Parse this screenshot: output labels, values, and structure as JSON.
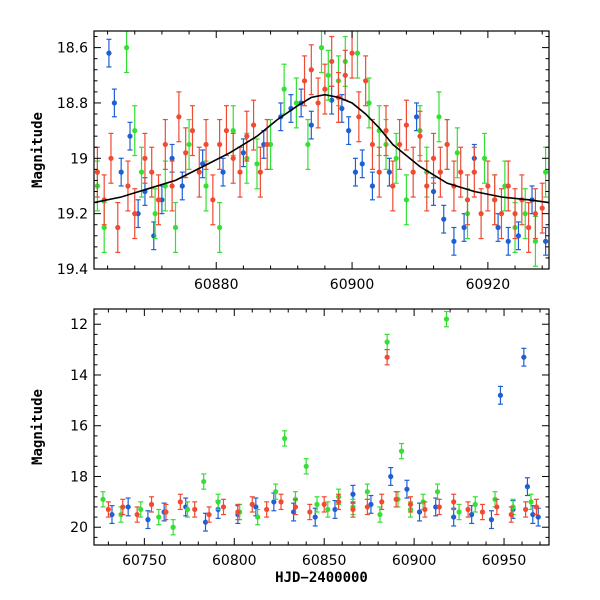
{
  "chart_data": [
    {
      "type": "scatter",
      "title": "",
      "xlabel": "",
      "ylabel": "Magnitude",
      "xlim": [
        60862,
        60929
      ],
      "ylim": [
        19.4,
        18.54
      ],
      "inverted_y": true,
      "x_ticks": [
        60880,
        60900,
        60920
      ],
      "y_ticks": [
        18.6,
        18.8,
        19,
        19.2,
        19.4
      ],
      "x_tick_labels": [
        "60880",
        "60900",
        "60920"
      ],
      "y_tick_labels": [
        "18.6",
        "18.8",
        "19",
        "19.2",
        "19.4"
      ],
      "error_bars": true,
      "series": [
        {
          "name": "blue",
          "color": "#1f5fd6",
          "error": 0.05,
          "x": [
            60864.2,
            60865.0,
            60866.0,
            60867.3,
            60868.5,
            60869.5,
            60870.8,
            60872.0,
            60873.5,
            60875.0,
            60878.0,
            60881.0,
            60884.0,
            60887.0,
            60889.5,
            60891.0,
            60892.5,
            60894.0,
            60897.0,
            60898.5,
            60899.5,
            60900.5,
            60901.5,
            60903.0,
            60905.5,
            60909.5,
            60912.0,
            60913.5,
            60915.0,
            60916.5,
            60918.0,
            60921.5,
            60923.0,
            60924.5,
            60926.5,
            60928.5
          ],
          "y": [
            18.62,
            18.8,
            19.05,
            18.92,
            19.2,
            19.12,
            19.28,
            19.15,
            19.0,
            19.1,
            19.02,
            19.05,
            18.98,
            18.95,
            18.85,
            18.82,
            18.8,
            18.88,
            18.79,
            18.82,
            18.9,
            19.05,
            19.02,
            19.1,
            19.05,
            18.85,
            19.12,
            19.22,
            19.3,
            19.25,
            19.0,
            19.25,
            19.3,
            19.28,
            19.15,
            19.3
          ]
        },
        {
          "name": "green",
          "color": "#33e033",
          "error": 0.09,
          "x": [
            60862.5,
            60863.5,
            60866.8,
            60868.0,
            60869.0,
            60871.0,
            60872.5,
            60874.0,
            60876.0,
            60878.5,
            60880.5,
            60882.5,
            60884.5,
            60886.0,
            60888.0,
            60890.0,
            60891.8,
            60893.5,
            60895.5,
            60896.5,
            60898.0,
            60899.0,
            60900.8,
            60902.5,
            60904.0,
            60905.0,
            60906.5,
            60908.0,
            60910.0,
            60911.0,
            60912.8,
            60914.0,
            60915.5,
            60917.0,
            60919.5,
            60921.0,
            60922.5,
            60924.0,
            60925.5,
            60927.0,
            60928.5
          ],
          "y": [
            19.1,
            19.25,
            18.6,
            18.9,
            19.05,
            19.2,
            19.1,
            19.25,
            18.95,
            19.1,
            19.25,
            18.9,
            19.0,
            19.02,
            18.95,
            18.75,
            18.8,
            18.95,
            18.6,
            18.7,
            18.72,
            18.65,
            18.62,
            18.8,
            18.9,
            18.95,
            19.0,
            19.15,
            18.9,
            19.05,
            18.85,
            18.95,
            18.98,
            19.2,
            19.0,
            19.15,
            19.1,
            19.25,
            19.2,
            19.3,
            19.05
          ]
        },
        {
          "name": "red",
          "color": "#f04a32",
          "error": 0.09,
          "x": [
            60862.5,
            60863.5,
            60864.5,
            60865.5,
            60867.0,
            60868.0,
            60869.5,
            60870.5,
            60871.5,
            60872.5,
            60873.5,
            60874.5,
            60875.5,
            60876.5,
            60877.5,
            60878.5,
            60879.5,
            60880.5,
            60881.5,
            60882.5,
            60883.5,
            60884.5,
            60885.5,
            60886.5,
            60887.5,
            60893.0,
            60894.0,
            60895.0,
            60896.0,
            60897.0,
            60898.0,
            60899.0,
            60900.0,
            60901.0,
            60902.0,
            60903.0,
            60904.0,
            60905.0,
            60906.0,
            60907.0,
            60908.0,
            60909.0,
            60910.0,
            60911.0,
            60912.0,
            60913.0,
            60914.0,
            60915.0,
            60916.0,
            60917.0,
            60918.0,
            60919.0,
            60920.0,
            60921.0,
            60922.0,
            60923.0,
            60924.0,
            60925.0,
            60926.0,
            60927.0,
            60928.0
          ],
          "y": [
            19.05,
            19.15,
            19.0,
            19.25,
            19.1,
            19.2,
            19.0,
            19.05,
            19.15,
            18.95,
            19.1,
            18.85,
            18.98,
            18.9,
            19.05,
            18.95,
            19.15,
            18.95,
            18.9,
            19.0,
            19.05,
            18.92,
            18.88,
            19.05,
            18.95,
            18.72,
            18.68,
            18.8,
            18.75,
            18.65,
            18.78,
            18.7,
            18.62,
            18.85,
            18.72,
            18.95,
            19.05,
            18.9,
            19.1,
            18.95,
            18.88,
            19.05,
            18.92,
            19.1,
            19.0,
            19.05,
            18.95,
            19.1,
            19.05,
            19.15,
            19.05,
            19.2,
            19.1,
            19.15,
            19.2,
            19.1,
            19.2,
            19.15,
            19.25,
            19.2,
            19.18
          ]
        },
        {
          "name": "model",
          "type": "line",
          "color": "#000000",
          "x": [
            60862,
            60866,
            60870,
            60874,
            60878,
            60882,
            60886,
            60889,
            60892,
            60894,
            60896,
            60898,
            60900,
            60902,
            60904,
            60906,
            60910,
            60914,
            60918,
            60922,
            60926,
            60929
          ],
          "y": [
            19.16,
            19.14,
            19.11,
            19.08,
            19.03,
            18.98,
            18.92,
            18.86,
            18.81,
            18.78,
            18.77,
            18.78,
            18.8,
            18.84,
            18.89,
            18.95,
            19.03,
            19.09,
            19.12,
            19.14,
            19.15,
            19.16
          ]
        }
      ]
    },
    {
      "type": "scatter",
      "title": "",
      "xlabel": "HJD−2400000",
      "ylabel": "Magnitude",
      "xlim": [
        60722,
        60975
      ],
      "ylim": [
        20.7,
        11.4
      ],
      "inverted_y": true,
      "x_ticks": [
        60750,
        60800,
        60850,
        60900,
        60950
      ],
      "y_ticks": [
        12,
        14,
        16,
        18,
        20
      ],
      "x_tick_labels": [
        "60750",
        "60800",
        "60850",
        "60900",
        "60950"
      ],
      "y_tick_labels": [
        "12",
        "14",
        "16",
        "18",
        "20"
      ],
      "error_bars": true,
      "series": [
        {
          "name": "blue",
          "color": "#1f5fd6",
          "error": 0.35,
          "x": [
            60732,
            60741,
            60752,
            60761,
            60773,
            60784,
            60791,
            60802,
            60812,
            60822,
            60833,
            60845,
            60856,
            60866,
            60876,
            60887,
            60896,
            60903,
            60912,
            60922,
            60932,
            60943,
            60948,
            60955,
            60961,
            60963,
            60966,
            60969
          ],
          "y": [
            19.5,
            19.2,
            19.7,
            19.4,
            19.2,
            19.8,
            19.3,
            19.5,
            19.2,
            19.0,
            19.4,
            19.6,
            19.3,
            18.7,
            19.1,
            18.0,
            18.5,
            19.4,
            19.2,
            19.6,
            19.5,
            19.7,
            14.8,
            19.3,
            13.3,
            18.4,
            19.5,
            19.6
          ]
        },
        {
          "name": "green",
          "color": "#33e033",
          "error": 0.3,
          "x": [
            60727,
            60737,
            60748,
            60758,
            60766,
            60774,
            60783,
            60791,
            60803,
            60813,
            60823,
            60828,
            60834,
            60840,
            60846,
            60852,
            60858,
            60866,
            60874,
            60881,
            60885,
            60891,
            60893,
            60898,
            60905,
            60913,
            60918,
            60925,
            60934,
            60945,
            60955,
            60965
          ],
          "y": [
            18.9,
            19.5,
            19.3,
            19.6,
            20.0,
            19.3,
            18.2,
            19.0,
            19.4,
            19.6,
            18.6,
            16.5,
            18.9,
            17.6,
            19.1,
            19.3,
            18.8,
            19.2,
            18.6,
            19.5,
            12.7,
            18.9,
            17.0,
            19.3,
            19.0,
            18.6,
            11.8,
            19.4,
            19.1,
            18.9,
            19.2,
            19.0
          ]
        },
        {
          "name": "red",
          "color": "#f04a32",
          "error": 0.3,
          "x": [
            60730,
            60738,
            60746,
            60754,
            60762,
            60770,
            60778,
            60786,
            60794,
            60802,
            60810,
            60818,
            60826,
            60834,
            60842,
            60850,
            60858,
            60866,
            60874,
            60882,
            60885,
            60890,
            60898,
            60906,
            60914,
            60922,
            60930,
            60938,
            60946,
            60954,
            60962,
            60968
          ],
          "y": [
            19.3,
            19.2,
            19.5,
            19.1,
            19.4,
            19.0,
            19.3,
            19.5,
            19.2,
            19.4,
            19.1,
            19.3,
            19.0,
            19.2,
            19.4,
            19.1,
            19.0,
            19.3,
            19.2,
            19.0,
            13.3,
            18.9,
            19.1,
            19.3,
            19.2,
            19.0,
            19.3,
            19.4,
            19.2,
            19.5,
            19.3,
            19.2
          ]
        }
      ]
    }
  ]
}
